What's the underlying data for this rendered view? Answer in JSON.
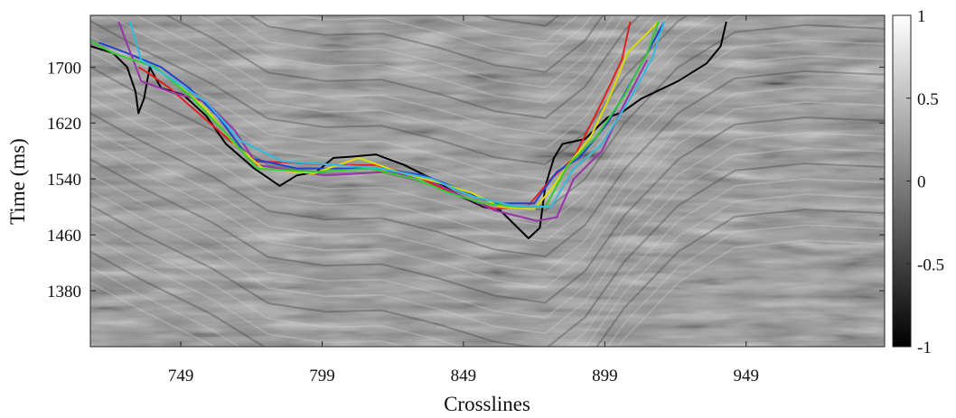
{
  "chart_data": {
    "type": "line",
    "title": "",
    "xlabel": "Crosslines",
    "ylabel": "Time (ms)",
    "xlim": [
      717,
      998
    ],
    "ylim": [
      1774,
      1300
    ],
    "xticks": [
      749,
      799,
      849,
      899,
      949
    ],
    "yticks": [
      1380,
      1460,
      1540,
      1620,
      1700
    ],
    "colorbar": {
      "range": [
        -1,
        1
      ],
      "ticks": [
        1,
        0.5,
        0,
        -0.5,
        -1
      ],
      "labels": [
        "1",
        "0.5",
        "0",
        "-0.5",
        "-1"
      ],
      "colormap": "gray"
    },
    "background": "seismic amplitude section (grayscale)",
    "series": [
      {
        "color": "#000000",
        "points": [
          [
            717,
            1730
          ],
          [
            725,
            1720
          ],
          [
            730,
            1700
          ],
          [
            733,
            1665
          ],
          [
            734,
            1634
          ],
          [
            736,
            1655
          ],
          [
            738,
            1700
          ],
          [
            742,
            1670
          ],
          [
            750,
            1660
          ],
          [
            758,
            1630
          ],
          [
            765,
            1590
          ],
          [
            775,
            1555
          ],
          [
            784,
            1530
          ],
          [
            790,
            1545
          ],
          [
            797,
            1550
          ],
          [
            803,
            1570
          ],
          [
            810,
            1572
          ],
          [
            818,
            1575
          ],
          [
            828,
            1560
          ],
          [
            838,
            1540
          ],
          [
            848,
            1515
          ],
          [
            856,
            1500
          ],
          [
            862,
            1495
          ],
          [
            867,
            1475
          ],
          [
            872,
            1455
          ],
          [
            876,
            1470
          ],
          [
            878,
            1530
          ],
          [
            881,
            1570
          ],
          [
            884,
            1590
          ],
          [
            892,
            1597
          ],
          [
            900,
            1628
          ],
          [
            905,
            1635
          ],
          [
            912,
            1655
          ],
          [
            925,
            1680
          ],
          [
            935,
            1705
          ],
          [
            940,
            1730
          ],
          [
            942,
            1765
          ]
        ]
      },
      {
        "color": "#e02020",
        "points": [
          [
            734,
            1700
          ],
          [
            738,
            1690
          ],
          [
            745,
            1670
          ],
          [
            755,
            1635
          ],
          [
            765,
            1600
          ],
          [
            775,
            1565
          ],
          [
            790,
            1563
          ],
          [
            803,
            1560
          ],
          [
            818,
            1560
          ],
          [
            832,
            1545
          ],
          [
            845,
            1520
          ],
          [
            860,
            1497
          ],
          [
            872,
            1502
          ],
          [
            880,
            1540
          ],
          [
            888,
            1570
          ],
          [
            898,
            1650
          ],
          [
            905,
            1710
          ],
          [
            908,
            1765
          ]
        ]
      },
      {
        "color": "#2244cc",
        "points": [
          [
            720,
            1735
          ],
          [
            730,
            1720
          ],
          [
            742,
            1700
          ],
          [
            752,
            1670
          ],
          [
            762,
            1630
          ],
          [
            773,
            1570
          ],
          [
            790,
            1555
          ],
          [
            805,
            1555
          ],
          [
            820,
            1555
          ],
          [
            835,
            1545
          ],
          [
            848,
            1525
          ],
          [
            860,
            1505
          ],
          [
            874,
            1505
          ],
          [
            882,
            1550
          ],
          [
            890,
            1570
          ],
          [
            900,
            1620
          ],
          [
            910,
            1690
          ],
          [
            920,
            1765
          ]
        ]
      },
      {
        "color": "#9933aa",
        "points": [
          [
            727,
            1765
          ],
          [
            735,
            1680
          ],
          [
            745,
            1665
          ],
          [
            758,
            1650
          ],
          [
            768,
            1610
          ],
          [
            776,
            1560
          ],
          [
            800,
            1545
          ],
          [
            822,
            1550
          ],
          [
            836,
            1540
          ],
          [
            846,
            1520
          ],
          [
            860,
            1495
          ],
          [
            875,
            1480
          ],
          [
            882,
            1485
          ],
          [
            888,
            1540
          ],
          [
            898,
            1580
          ],
          [
            905,
            1640
          ],
          [
            914,
            1710
          ]
        ]
      },
      {
        "color": "#dddd00",
        "points": [
          [
            740,
            1700
          ],
          [
            748,
            1675
          ],
          [
            758,
            1640
          ],
          [
            768,
            1590
          ],
          [
            778,
            1555
          ],
          [
            796,
            1548
          ],
          [
            812,
            1570
          ],
          [
            826,
            1550
          ],
          [
            840,
            1535
          ],
          [
            852,
            1520
          ],
          [
            862,
            1500
          ],
          [
            874,
            1497
          ],
          [
            880,
            1525
          ],
          [
            886,
            1560
          ],
          [
            894,
            1600
          ],
          [
            901,
            1660
          ],
          [
            907,
            1720
          ],
          [
            918,
            1765
          ]
        ]
      },
      {
        "color": "#33cc33",
        "points": [
          [
            717,
            1737
          ],
          [
            725,
            1720
          ],
          [
            740,
            1700
          ],
          [
            752,
            1660
          ],
          [
            764,
            1610
          ],
          [
            776,
            1555
          ],
          [
            796,
            1550
          ],
          [
            816,
            1555
          ],
          [
            832,
            1540
          ],
          [
            844,
            1520
          ],
          [
            856,
            1505
          ],
          [
            868,
            1500
          ],
          [
            878,
            1500
          ],
          [
            886,
            1560
          ],
          [
            896,
            1600
          ],
          [
            906,
            1660
          ],
          [
            914,
            1720
          ],
          [
            918,
            1765
          ]
        ]
      },
      {
        "color": "#33bbdd",
        "points": [
          [
            731,
            1765
          ],
          [
            735,
            1710
          ],
          [
            745,
            1685
          ],
          [
            758,
            1650
          ],
          [
            770,
            1595
          ],
          [
            785,
            1565
          ],
          [
            804,
            1560
          ],
          [
            820,
            1555
          ],
          [
            838,
            1540
          ],
          [
            852,
            1515
          ],
          [
            866,
            1502
          ],
          [
            880,
            1500
          ],
          [
            888,
            1555
          ],
          [
            898,
            1590
          ],
          [
            908,
            1655
          ],
          [
            916,
            1715
          ],
          [
            920,
            1765
          ]
        ]
      }
    ]
  }
}
